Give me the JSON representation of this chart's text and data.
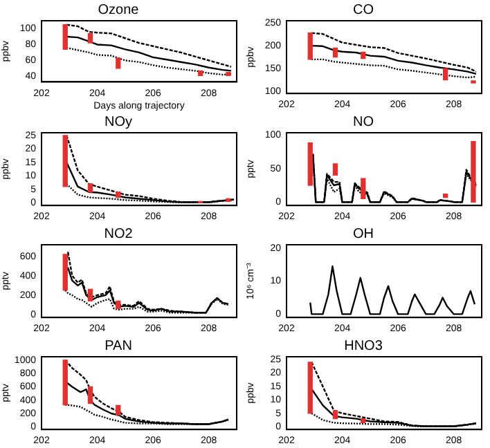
{
  "chart_data": [
    {
      "type": "line",
      "title": "Ozone",
      "xlabel": "Days along trajectory",
      "ylabel": "ppbv",
      "xlim": [
        202,
        209
      ],
      "xticks": [
        202,
        204,
        206,
        208
      ],
      "ylim": [
        33,
        110
      ],
      "yticks": [
        40,
        60,
        80,
        100
      ],
      "marker": "none",
      "grid": false,
      "legend": false,
      "x": [
        202.9,
        203.3,
        203.7,
        204,
        204.5,
        205,
        205.5,
        206,
        206.5,
        207,
        207.5,
        208,
        208.5,
        208.8
      ],
      "series": [
        {
          "color": "#000000",
          "line_style": "dashed",
          "values": [
            105,
            103,
            96,
            95,
            94,
            88,
            82,
            78,
            74,
            70,
            65,
            60,
            55,
            52
          ]
        },
        {
          "color": "#000000",
          "line_style": "solid",
          "values": [
            90,
            89,
            84,
            80,
            79,
            74,
            70,
            64,
            61,
            58,
            55,
            51,
            48,
            47
          ]
        },
        {
          "color": "#000000",
          "line_style": "dotted",
          "values": [
            76,
            73,
            70,
            67,
            66,
            60,
            58,
            54,
            51,
            49,
            47,
            44,
            42,
            43
          ]
        },
        {
          "type": "bar",
          "color": "#e03030",
          "x": [
            202.85,
            203.75,
            204.75,
            207.7,
            208.7
          ],
          "base": [
            74,
            82,
            50,
            41,
            41
          ],
          "values": [
            31,
            12,
            13,
            6,
            4
          ]
        }
      ]
    },
    {
      "type": "line",
      "title": "CO",
      "ylabel": "ppbv",
      "xlim": [
        202,
        209
      ],
      "xticks": [
        202,
        204,
        206,
        208
      ],
      "ylim": [
        95,
        255
      ],
      "yticks": [
        100,
        150,
        200,
        250
      ],
      "marker": "none",
      "grid": false,
      "legend": false,
      "x": [
        202.9,
        203.3,
        203.7,
        204,
        204.5,
        205,
        205.5,
        206,
        206.5,
        207,
        207.5,
        208,
        208.5,
        208.8
      ],
      "series": [
        {
          "color": "#000000",
          "line_style": "dashed",
          "values": [
            228,
            226,
            215,
            207,
            202,
            197,
            195,
            184,
            178,
            172,
            165,
            158,
            152,
            143
          ]
        },
        {
          "color": "#000000",
          "line_style": "solid",
          "values": [
            200,
            199,
            190,
            187,
            185,
            178,
            176,
            167,
            163,
            157,
            152,
            148,
            143,
            138
          ]
        },
        {
          "color": "#000000",
          "line_style": "dotted",
          "values": [
            170,
            170,
            165,
            163,
            160,
            157,
            156,
            148,
            145,
            141,
            137,
            133,
            130,
            132
          ]
        },
        {
          "type": "bar",
          "color": "#e03030",
          "x": [
            202.85,
            203.75,
            204.75,
            207.7,
            208.7
          ],
          "base": [
            170,
            175,
            172,
            125,
            118
          ],
          "values": [
            58,
            20,
            14,
            25,
            5
          ]
        }
      ]
    },
    {
      "type": "line",
      "title": "NOy",
      "ylabel": "ppbv",
      "xlim": [
        202,
        209
      ],
      "xticks": [
        202,
        204,
        206,
        208
      ],
      "ylim": [
        -1,
        26
      ],
      "yticks": [
        0,
        5,
        10,
        15,
        20,
        25
      ],
      "marker": "none",
      "grid": false,
      "legend": false,
      "x": [
        202.9,
        203.3,
        203.7,
        204,
        204.5,
        205,
        205.5,
        206,
        206.5,
        207,
        207.5,
        208,
        208.5,
        208.9
      ],
      "series": [
        {
          "color": "#000000",
          "line_style": "dashed",
          "values": [
            25,
            12,
            7,
            6,
            4.5,
            3,
            2.5,
            1.5,
            0.8,
            0.3,
            0.3,
            0.3,
            0.8,
            1.2
          ]
        },
        {
          "color": "#000000",
          "line_style": "solid",
          "values": [
            15,
            6,
            4,
            3.8,
            3,
            2,
            1.5,
            1,
            0.5,
            0.2,
            0.2,
            0.2,
            0.8,
            1.2
          ]
        },
        {
          "color": "#000000",
          "line_style": "dotted",
          "values": [
            7,
            3,
            2,
            1.8,
            1.5,
            1,
            0.8,
            0.5,
            0.3,
            0.1,
            0.1,
            0.1,
            0.7,
            1.2
          ]
        },
        {
          "type": "bar",
          "color": "#e03030",
          "x": [
            202.85,
            203.75,
            204.75,
            207.7,
            208.7
          ],
          "base": [
            6,
            4,
            2,
            0,
            0.5
          ],
          "values": [
            19,
            3,
            2,
            0.5,
            1
          ]
        }
      ]
    },
    {
      "type": "line",
      "title": "NO",
      "ylabel": "pptv",
      "xlim": [
        202,
        209
      ],
      "xticks": [
        202,
        204,
        206,
        208
      ],
      "ylim": [
        -5,
        103
      ],
      "yticks": [
        0,
        50,
        100
      ],
      "marker": "none",
      "grid": false,
      "legend": false,
      "x": [
        202.95,
        203.05,
        203.35,
        203.45,
        203.7,
        203.9,
        204.0,
        204.35,
        204.45,
        204.6,
        204.9,
        205.0,
        205.35,
        205.5,
        205.8,
        205.95,
        206.35,
        206.5,
        206.9,
        207.0,
        207.4,
        207.5,
        207.9,
        208.0,
        208.3,
        208.45,
        208.6,
        208.8
      ],
      "series": [
        {
          "color": "#000000",
          "line_style": "dashed",
          "values": [
            72,
            0,
            0,
            42,
            30,
            30,
            0,
            0,
            28,
            22,
            14,
            0,
            0,
            16,
            9,
            0,
            0,
            6,
            2,
            0,
            0,
            3,
            1,
            0,
            0,
            48,
            37,
            27
          ]
        },
        {
          "color": "#000000",
          "line_style": "solid",
          "values": [
            70,
            0,
            0,
            40,
            25,
            27,
            0,
            0,
            27,
            20,
            12,
            0,
            0,
            15,
            8,
            0,
            0,
            5,
            2,
            0,
            0,
            3,
            1,
            0,
            0,
            45,
            35,
            25
          ]
        },
        {
          "color": "#000000",
          "line_style": "dotted",
          "values": [
            65,
            0,
            0,
            35,
            15,
            20,
            0,
            0,
            25,
            15,
            10,
            0,
            0,
            13,
            7,
            0,
            0,
            5,
            2,
            0,
            0,
            3,
            1,
            0,
            0,
            42,
            33,
            23
          ]
        },
        {
          "type": "bar",
          "color": "#e03030",
          "x": [
            202.85,
            203.75,
            204.75,
            207.7,
            208.7
          ],
          "base": [
            25,
            40,
            5,
            7,
            0
          ],
          "values": [
            63,
            17,
            30,
            5,
            90
          ]
        }
      ]
    },
    {
      "type": "line",
      "title": "NO2",
      "ylabel": "pptv",
      "xlim": [
        202,
        209
      ],
      "xticks": [
        202,
        204,
        206,
        208
      ],
      "ylim": [
        -30,
        720
      ],
      "yticks": [
        0,
        200,
        400,
        600
      ],
      "marker": "none",
      "grid": false,
      "legend": false,
      "x": [
        202.85,
        202.95,
        203.1,
        203.3,
        203.45,
        203.6,
        203.8,
        204.0,
        204.3,
        204.45,
        204.6,
        204.8,
        205.0,
        205.3,
        205.5,
        205.8,
        206.0,
        206.3,
        206.6,
        207.0,
        207.5,
        207.9,
        208.1,
        208.3,
        208.5,
        208.7
      ],
      "series": [
        {
          "color": "#000000",
          "line_style": "dashed",
          "values": [
            440,
            640,
            400,
            330,
            360,
            220,
            180,
            200,
            220,
            290,
            130,
            100,
            100,
            90,
            140,
            60,
            50,
            60,
            40,
            30,
            20,
            20,
            120,
            170,
            120,
            110
          ]
        },
        {
          "color": "#000000",
          "line_style": "solid",
          "values": [
            430,
            480,
            350,
            300,
            330,
            200,
            150,
            180,
            200,
            250,
            120,
            80,
            90,
            80,
            120,
            50,
            40,
            60,
            30,
            30,
            20,
            20,
            120,
            170,
            120,
            110
          ]
        },
        {
          "color": "#000000",
          "line_style": "dotted",
          "values": [
            250,
            220,
            200,
            160,
            150,
            120,
            80,
            120,
            150,
            160,
            60,
            50,
            60,
            60,
            80,
            30,
            30,
            40,
            20,
            20,
            20,
            20,
            110,
            160,
            110,
            100
          ]
        },
        {
          "type": "bar",
          "color": "#e03030",
          "x": [
            202.85,
            203.75,
            204.75
          ],
          "base": [
            250,
            140,
            60
          ],
          "values": [
            370,
            120,
            80
          ]
        }
      ]
    },
    {
      "type": "line",
      "title": "OH",
      "ylabel": "10⁶ cm⁻³",
      "xlim": [
        202,
        209
      ],
      "xticks": [
        202,
        204,
        206,
        208
      ],
      "ylim": [
        -1,
        21
      ],
      "yticks": [
        0,
        10,
        20
      ],
      "marker": "none",
      "grid": false,
      "legend": false,
      "x": [
        202.85,
        202.9,
        202.95,
        203.3,
        203.5,
        203.65,
        203.8,
        204.0,
        204.3,
        204.5,
        204.65,
        204.8,
        205.0,
        205.35,
        205.5,
        205.65,
        205.8,
        206.0,
        206.35,
        206.5,
        206.6,
        206.8,
        207.0,
        207.3,
        207.5,
        207.6,
        207.75,
        208.0,
        208.3,
        208.5,
        208.6,
        208.75
      ],
      "series": [
        {
          "color": "#000000",
          "line_style": "solid",
          "values": [
            3.5,
            0,
            0,
            0,
            6,
            14.5,
            7,
            0,
            0,
            6,
            11,
            6,
            0,
            0,
            5,
            8.5,
            4,
            0,
            0,
            4,
            6,
            3,
            0,
            0,
            3,
            5,
            2.5,
            0,
            0,
            5,
            7,
            3
          ]
        }
      ]
    },
    {
      "type": "line",
      "title": "PAN",
      "ylabel": "pptv",
      "xlim": [
        202,
        209
      ],
      "xticks": [
        202,
        204,
        206,
        208
      ],
      "ylim": [
        -40,
        1050
      ],
      "yticks": [
        0,
        200,
        400,
        600,
        800,
        1000
      ],
      "marker": "none",
      "grid": false,
      "legend": false,
      "x": [
        202.85,
        203.1,
        203.4,
        203.6,
        203.75,
        203.9,
        204.2,
        204.5,
        204.8,
        205.0,
        205.5,
        206.0,
        206.5,
        207,
        207.5,
        208,
        208.5,
        208.7
      ],
      "series": [
        {
          "color": "#000000",
          "line_style": "dashed",
          "values": [
            1000,
            880,
            780,
            700,
            550,
            450,
            350,
            280,
            220,
            150,
            100,
            70,
            60,
            50,
            40,
            40,
            80,
            110
          ]
        },
        {
          "color": "#000000",
          "line_style": "solid",
          "values": [
            680,
            600,
            520,
            560,
            400,
            330,
            260,
            200,
            170,
            120,
            80,
            60,
            50,
            50,
            40,
            40,
            80,
            110
          ]
        },
        {
          "color": "#000000",
          "line_style": "dotted",
          "values": [
            330,
            320,
            300,
            250,
            220,
            180,
            150,
            110,
            80,
            60,
            50,
            50,
            40,
            40,
            40,
            40,
            80,
            100
          ]
        },
        {
          "type": "bar",
          "color": "#e03030",
          "x": [
            202.85,
            203.75,
            204.75
          ],
          "base": [
            330,
            350,
            180
          ],
          "values": [
            670,
            250,
            140
          ]
        }
      ]
    },
    {
      "type": "line",
      "title": "HNO3",
      "ylabel": "ppbv",
      "xlim": [
        202,
        209
      ],
      "xticks": [
        202,
        204,
        206,
        208
      ],
      "ylim": [
        -1,
        26
      ],
      "yticks": [
        0,
        5,
        10,
        15,
        20,
        25
      ],
      "marker": "none",
      "grid": false,
      "legend": false,
      "x": [
        202.9,
        203.3,
        203.7,
        204,
        204.5,
        205,
        205.5,
        206,
        206.5,
        207,
        207.5,
        208,
        208.5,
        208.8
      ],
      "series": [
        {
          "color": "#000000",
          "line_style": "dashed",
          "values": [
            24,
            15,
            6,
            5,
            4,
            3,
            2,
            1.8,
            0.5,
            0.2,
            0.2,
            0.2,
            0.8,
            1.3
          ]
        },
        {
          "color": "#000000",
          "line_style": "solid",
          "values": [
            14,
            8,
            4,
            3.5,
            3,
            2,
            1.7,
            1.5,
            0.4,
            0.2,
            0.2,
            0.2,
            0.8,
            1.3
          ]
        },
        {
          "color": "#000000",
          "line_style": "dotted",
          "values": [
            5,
            2.5,
            1.5,
            1.3,
            1.2,
            1,
            1,
            0.8,
            0.3,
            0.1,
            0.1,
            0.1,
            0.7,
            1.2
          ]
        },
        {
          "type": "bar",
          "color": "#e03030",
          "x": [
            202.85,
            203.75,
            204.75
          ],
          "base": [
            5,
            3,
            1.5
          ],
          "values": [
            19,
            3,
            1.5
          ]
        }
      ]
    }
  ]
}
